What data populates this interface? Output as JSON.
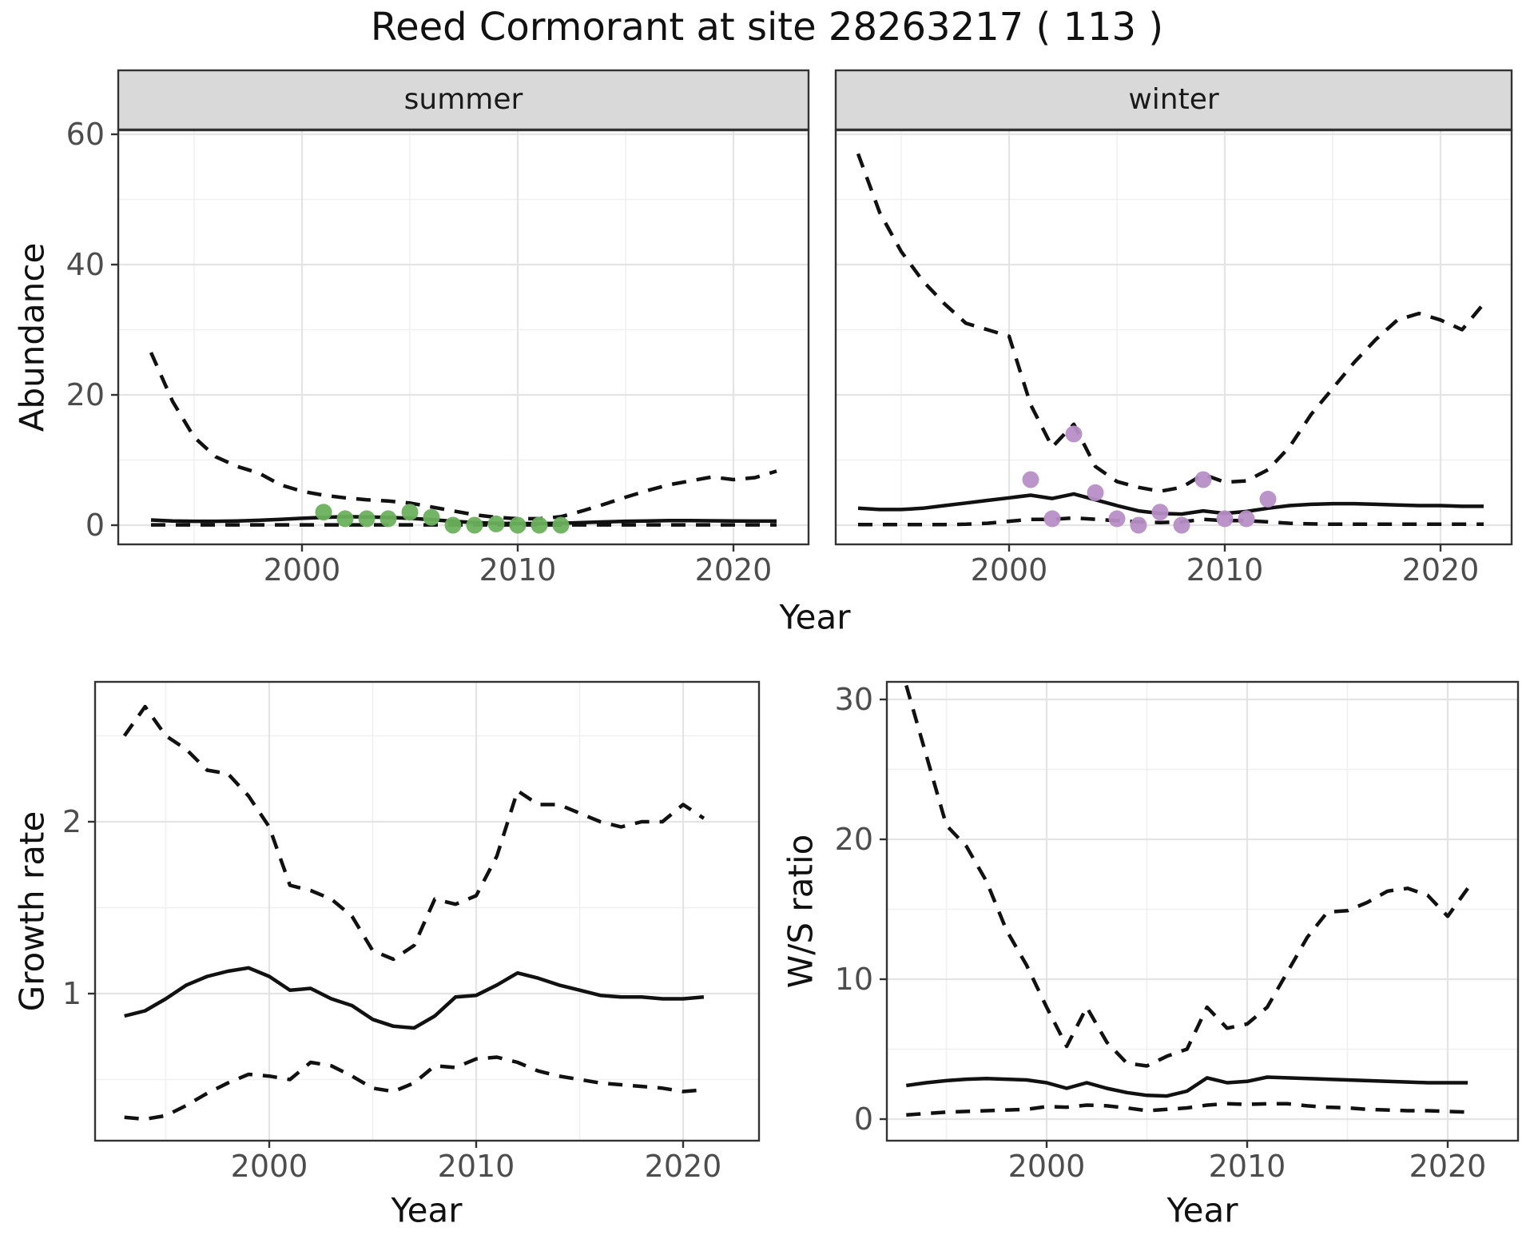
{
  "title": "Reed Cormorant at site 28263217 ( 113 )",
  "facets": {
    "summer": "summer",
    "winter": "winter"
  },
  "axis_titles": {
    "abundance": "Abundance",
    "year": "Year",
    "growth": "Growth rate",
    "ws_ratio": "W/S ratio"
  },
  "colors": {
    "summer_points": "#6ab15c",
    "winter_points": "#b78ec6",
    "line": "#111111",
    "strip_bg": "#d9d9d9",
    "panel_border": "#333333",
    "grid_major": "#e4e4e4",
    "grid_minor": "#f0f0f0",
    "tick_text": "#4d4d4d"
  },
  "chart_data": [
    {
      "id": "abundance_summer",
      "type": "line",
      "facet": "summer",
      "title": "",
      "xlabel": "Year",
      "ylabel": "Abundance",
      "xticks": [
        2000,
        2010,
        2020
      ],
      "xminor": [
        1995,
        2005,
        2015
      ],
      "yticks": [
        0,
        20,
        40,
        60
      ],
      "yminor": [
        10,
        30,
        50
      ],
      "ylim": [
        -3,
        60.6
      ],
      "xlim": [
        1991.5,
        2023.5
      ],
      "x": [
        1993,
        1994,
        1995,
        1996,
        1997,
        1998,
        1999,
        2000,
        2001,
        2002,
        2003,
        2004,
        2005,
        2006,
        2007,
        2008,
        2009,
        2010,
        2011,
        2012,
        2013,
        2014,
        2015,
        2016,
        2017,
        2018,
        2019,
        2020,
        2021,
        2022
      ],
      "series": [
        {
          "name": "upper_ci",
          "style": "dashed",
          "values": [
            26.5,
            19,
            13.5,
            10.5,
            9,
            8,
            6.2,
            5.2,
            4.6,
            4.2,
            3.9,
            3.7,
            3.4,
            2.8,
            2.2,
            1.6,
            1.2,
            1.0,
            1.0,
            1.3,
            2.2,
            3.2,
            4.3,
            5.3,
            6.2,
            6.8,
            7.4,
            7.0,
            7.3,
            8.3
          ]
        },
        {
          "name": "median",
          "style": "solid",
          "values": [
            0.8,
            0.65,
            0.6,
            0.6,
            0.65,
            0.75,
            0.9,
            1.05,
            1.2,
            1.3,
            1.25,
            1.2,
            1.05,
            0.85,
            0.6,
            0.4,
            0.3,
            0.25,
            0.25,
            0.3,
            0.4,
            0.5,
            0.6,
            0.65,
            0.7,
            0.7,
            0.68,
            0.65,
            0.63,
            0.62
          ]
        },
        {
          "name": "lower_ci",
          "style": "dashed",
          "values": [
            0.05,
            0.05,
            0.05,
            0.05,
            0.05,
            0.05,
            0.05,
            0.05,
            0.05,
            0.05,
            0.05,
            0.05,
            0.05,
            0.05,
            0.05,
            0.05,
            0.05,
            0.05,
            0.05,
            0.05,
            0.05,
            0.05,
            0.05,
            0.05,
            0.05,
            0.05,
            0.05,
            0.05,
            0.05,
            0.05
          ]
        }
      ],
      "points": {
        "name": "observed_counts",
        "x": [
          2001,
          2002,
          2003,
          2004,
          2005,
          2006,
          2007,
          2008,
          2009,
          2010,
          2011,
          2012
        ],
        "y": [
          2,
          1,
          1,
          1,
          2,
          1.2,
          0,
          0,
          0.2,
          0,
          0,
          0
        ]
      }
    },
    {
      "id": "abundance_winter",
      "type": "line",
      "facet": "winter",
      "title": "",
      "xlabel": "Year",
      "ylabel": "Abundance",
      "xticks": [
        2000,
        2010,
        2020
      ],
      "xminor": [
        1995,
        2005,
        2015
      ],
      "yticks": [
        0,
        20,
        40,
        60
      ],
      "yminor": [
        10,
        30,
        50
      ],
      "ylim": [
        -3,
        60.6
      ],
      "xlim": [
        1992,
        2023.3
      ],
      "x": [
        1993,
        1994,
        1995,
        1996,
        1997,
        1998,
        1999,
        2000,
        2001,
        2002,
        2003,
        2004,
        2005,
        2006,
        2007,
        2008,
        2009,
        2010,
        2011,
        2012,
        2013,
        2014,
        2015,
        2016,
        2017,
        2018,
        2019,
        2020,
        2021,
        2022
      ],
      "series": [
        {
          "name": "upper_ci",
          "style": "dashed",
          "values": [
            57,
            48,
            42,
            37.5,
            34,
            31,
            30,
            29,
            18.5,
            12,
            15.5,
            9,
            6.7,
            5.8,
            5.2,
            5.8,
            7.8,
            6.6,
            6.8,
            8.5,
            12,
            17,
            21,
            25,
            28.5,
            31.5,
            32.5,
            31.5,
            30,
            34
          ]
        },
        {
          "name": "median",
          "style": "solid",
          "values": [
            2.6,
            2.4,
            2.4,
            2.6,
            3.0,
            3.4,
            3.8,
            4.2,
            4.6,
            4.1,
            4.8,
            3.9,
            3.0,
            2.2,
            1.8,
            1.7,
            2.2,
            1.8,
            2.1,
            2.6,
            3.0,
            3.2,
            3.3,
            3.3,
            3.2,
            3.1,
            3.0,
            3.0,
            2.9,
            2.9
          ]
        },
        {
          "name": "lower_ci",
          "style": "dashed",
          "values": [
            0.1,
            0.1,
            0.1,
            0.1,
            0.1,
            0.15,
            0.3,
            0.6,
            0.9,
            0.9,
            1.1,
            0.9,
            0.7,
            0.5,
            0.4,
            0.5,
            0.9,
            0.7,
            0.7,
            0.5,
            0.3,
            0.2,
            0.15,
            0.15,
            0.15,
            0.15,
            0.15,
            0.15,
            0.15,
            0.15
          ]
        }
      ],
      "points": {
        "name": "observed_counts",
        "x": [
          2001,
          2002,
          2003,
          2004,
          2005,
          2006,
          2007,
          2008,
          2009,
          2010,
          2011,
          2012
        ],
        "y": [
          7,
          1,
          14,
          5,
          1,
          0,
          2,
          0,
          7,
          1,
          1,
          4
        ]
      }
    },
    {
      "id": "growth_rate",
      "type": "line",
      "facet": "",
      "title": "",
      "xlabel": "Year",
      "ylabel": "Growth rate",
      "xticks": [
        2000,
        2010,
        2020
      ],
      "xminor": [
        1995,
        2005,
        2015
      ],
      "yticks": [
        1,
        2
      ],
      "yminor": [
        0.5,
        1.5,
        2.5
      ],
      "ylim": [
        0.14,
        2.81
      ],
      "xlim": [
        1991.6,
        2023.7
      ],
      "x": [
        1993,
        1994,
        1995,
        1996,
        1997,
        1998,
        1999,
        2000,
        2001,
        2002,
        2003,
        2004,
        2005,
        2006,
        2007,
        2008,
        2009,
        2010,
        2011,
        2012,
        2013,
        2014,
        2015,
        2016,
        2017,
        2018,
        2019,
        2020,
        2021
      ],
      "series": [
        {
          "name": "upper_ci",
          "style": "dashed",
          "values": [
            2.5,
            2.67,
            2.5,
            2.42,
            2.3,
            2.28,
            2.15,
            1.97,
            1.63,
            1.6,
            1.55,
            1.45,
            1.25,
            1.2,
            1.28,
            1.55,
            1.52,
            1.57,
            1.8,
            2.18,
            2.1,
            2.1,
            2.05,
            2.0,
            1.97,
            2.0,
            2.0,
            2.1,
            2.02
          ]
        },
        {
          "name": "median",
          "style": "solid",
          "values": [
            0.87,
            0.9,
            0.97,
            1.05,
            1.1,
            1.13,
            1.15,
            1.1,
            1.02,
            1.03,
            0.97,
            0.93,
            0.85,
            0.81,
            0.8,
            0.87,
            0.98,
            0.99,
            1.05,
            1.12,
            1.09,
            1.05,
            1.02,
            0.99,
            0.98,
            0.98,
            0.97,
            0.97,
            0.98
          ]
        },
        {
          "name": "lower_ci",
          "style": "dashed",
          "values": [
            0.28,
            0.27,
            0.29,
            0.35,
            0.42,
            0.48,
            0.53,
            0.52,
            0.5,
            0.6,
            0.58,
            0.52,
            0.45,
            0.43,
            0.48,
            0.58,
            0.57,
            0.62,
            0.63,
            0.6,
            0.55,
            0.52,
            0.5,
            0.48,
            0.47,
            0.46,
            0.45,
            0.43,
            0.44
          ]
        }
      ],
      "points": null
    },
    {
      "id": "ws_ratio",
      "type": "line",
      "facet": "",
      "title": "",
      "xlabel": "Year",
      "ylabel": "W/S ratio",
      "xticks": [
        2000,
        2010,
        2020
      ],
      "xminor": [
        1995,
        2005,
        2015
      ],
      "yticks": [
        0,
        10,
        20,
        30
      ],
      "yminor": [
        5,
        15,
        25
      ],
      "ylim": [
        -1.5,
        31.3
      ],
      "xlim": [
        1992,
        2023.5
      ],
      "x": [
        1993,
        1994,
        1995,
        1996,
        1997,
        1998,
        1999,
        2000,
        2001,
        2002,
        2003,
        2004,
        2005,
        2006,
        2007,
        2008,
        2009,
        2010,
        2011,
        2012,
        2013,
        2014,
        2015,
        2016,
        2017,
        2018,
        2019,
        2020,
        2021
      ],
      "series": [
        {
          "name": "upper_ci",
          "style": "dashed",
          "values": [
            31,
            26,
            21,
            19.5,
            17,
            13.5,
            11,
            8,
            5.2,
            8,
            5.5,
            4,
            3.8,
            4.5,
            5,
            8,
            6.5,
            6.8,
            8,
            10.5,
            13,
            14.8,
            14.9,
            15.5,
            16.3,
            16.5,
            16,
            14.5,
            16.5
          ]
        },
        {
          "name": "median",
          "style": "solid",
          "values": [
            2.4,
            2.6,
            2.75,
            2.85,
            2.9,
            2.85,
            2.8,
            2.6,
            2.2,
            2.6,
            2.2,
            1.9,
            1.7,
            1.65,
            2.0,
            2.95,
            2.6,
            2.7,
            3.0,
            2.95,
            2.9,
            2.85,
            2.8,
            2.75,
            2.7,
            2.65,
            2.6,
            2.6,
            2.6
          ]
        },
        {
          "name": "lower_ci",
          "style": "dashed",
          "values": [
            0.3,
            0.4,
            0.5,
            0.55,
            0.6,
            0.65,
            0.7,
            0.9,
            0.85,
            1.0,
            0.95,
            0.8,
            0.6,
            0.7,
            0.8,
            1.0,
            1.1,
            1.05,
            1.1,
            1.1,
            0.95,
            0.85,
            0.8,
            0.7,
            0.65,
            0.6,
            0.6,
            0.55,
            0.5
          ]
        }
      ],
      "points": null
    }
  ]
}
